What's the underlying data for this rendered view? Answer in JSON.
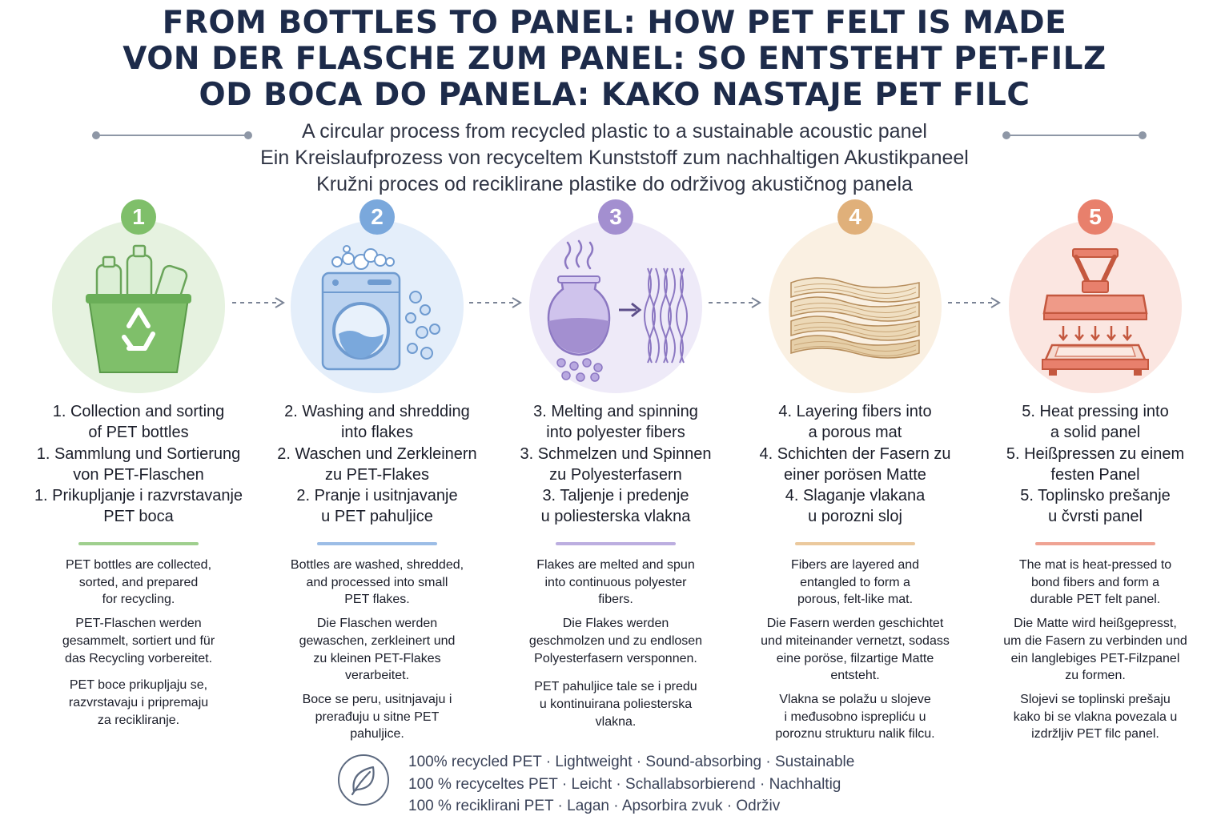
{
  "title": {
    "en": "FROM BOTTLES TO PANEL: HOW PET FELT IS MADE",
    "de": "VON DER FLASCHE ZUM PANEL: SO ENTSTEHT PET-FILZ",
    "hr": "OD BOCA DO PANELA: KAKO NASTAJE PET FILC"
  },
  "subtitle": {
    "en": "A circular process from recycled plastic to a sustainable acoustic panel",
    "de": "Ein Kreislaufprozess von recyceltem Kunststoff zum nachhaltigen Akustikpaneel",
    "hr": "Kružni proces od reciklirane plastike do održivog akustičnog panela"
  },
  "steps": [
    {
      "number": "1",
      "color": "#7fbf6a",
      "tint": "#e6f2e0",
      "icon": "recycling-bin-icon",
      "heading": [
        "1. Collection and sorting",
        "of PET bottles",
        "1. Sammlung und Sortierung",
        "von PET-Flaschen",
        "1. Prikupljanje i razvrstavanje",
        "PET boca"
      ],
      "desc": [
        [
          "PET bottles are collected,",
          "sorted, and prepared",
          "for recycling."
        ],
        [
          "PET-Flaschen werden",
          "gesammelt, sortiert und für",
          "das Recycling vorbereitet."
        ],
        [
          "PET boce prikupljaju se,",
          "razvrstavaju i pripremaju",
          "za recikliranje."
        ]
      ]
    },
    {
      "number": "2",
      "color": "#7aa8dc",
      "tint": "#e4eefa",
      "icon": "washing-machine-icon",
      "heading": [
        "2. Washing and shredding",
        "into flakes",
        "2. Waschen und Zerkleinern",
        "zu PET-Flakes",
        "2. Pranje i usitnjavanje",
        "u PET pahuljice"
      ],
      "desc": [
        [
          "Bottles are washed, shredded,",
          "and processed into small",
          "PET flakes."
        ],
        [
          "Die Flaschen werden",
          "gewaschen, zerkleinert und",
          "zu kleinen PET-Flakes",
          "verarbeitet."
        ],
        [
          "Boce se peru, usitnjavaju i",
          "prerađuju u sitne PET",
          "pahuljice."
        ]
      ]
    },
    {
      "number": "3",
      "color": "#a38fd0",
      "tint": "#eeeaf8",
      "icon": "melting-pot-fibers-icon",
      "heading": [
        "3. Melting and spinning",
        "into polyester fibers",
        "3. Schmelzen und Spinnen",
        "zu Polyesterfasern",
        "3. Taljenje i predenje",
        "u poliesterska vlakna"
      ],
      "desc": [
        [
          "Flakes are melted and spun",
          "into continuous polyester",
          "fibers."
        ],
        [
          "Die Flakes werden",
          "geschmolzen und zu endlosen",
          "Polyesterfasern versponnen."
        ],
        [
          "PET pahuljice tale se i predu",
          "u kontinuirana poliesterska",
          "vlakna."
        ]
      ]
    },
    {
      "number": "4",
      "color": "#e0b07a",
      "tint": "#faf0e2",
      "icon": "fiber-layers-icon",
      "heading": [
        "4. Layering fibers into",
        "a porous mat",
        "4. Schichten der Fasern zu",
        "einer porösen Matte",
        "4. Slaganje vlakana",
        "u porozni sloj"
      ],
      "desc": [
        [
          "Fibers are layered and",
          "entangled to form a",
          "porous, felt-like mat."
        ],
        [
          "Die Fasern werden geschichtet",
          "und miteinander vernetzt, sodass",
          "eine poröse, filzartige Matte",
          "entsteht."
        ],
        [
          "Vlakna se polažu u slojeve",
          "i međusobno isprepliću u",
          "poroznu strukturu nalik filcu."
        ]
      ]
    },
    {
      "number": "5",
      "color": "#e8806c",
      "tint": "#fbe6e1",
      "icon": "heat-press-icon",
      "heading": [
        "5. Heat pressing into",
        "a solid panel",
        "5. Heißpressen zu einem",
        "festen Panel",
        "5. Toplinsko prešanje",
        "u čvrsti panel"
      ],
      "desc": [
        [
          "The mat is heat-pressed to",
          "bond fibers and form a",
          "durable PET felt panel."
        ],
        [
          "Die Matte wird heißgepresst,",
          "um die Fasern zu verbinden und",
          "ein langlebiges PET-Filzpanel",
          "zu formen."
        ],
        [
          "Slojevi se toplinski prešaju",
          "kako bi se vlakna povezala u",
          "izdržljiv PET filc panel."
        ]
      ]
    }
  ],
  "footer": {
    "icon": "leaf-icon",
    "lines": [
      "100% recycled PET  ·  Lightweight  ·  Sound-absorbing  ·  Sustainable",
      "100 % recyceltes PET  ·  Leicht  ·  Schallabsorbierend  ·  Nachhaltig",
      "100 % reciklirani PET  ·  Lagan  ·  Apsorbira zvuk  ·  Održiv"
    ]
  }
}
